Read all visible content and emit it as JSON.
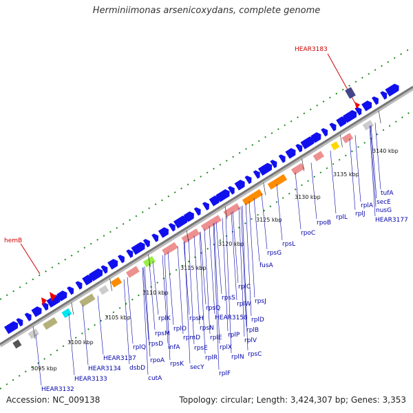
{
  "title": "Herminiimonas arsenicoxydans, complete genome",
  "footer": {
    "accession": "Accession: NC_009138",
    "summary": "Topology: circular; Length: 3,424,307 bp; Genes: 3,353"
  },
  "ticks": [
    "3095 kbp",
    "3100 kbp",
    "3105 kbp",
    "3110 kbp",
    "3115 kbp",
    "3120 kbp",
    "3125 kbp",
    "3130 kbp",
    "3135 kbp",
    "3140 kbp"
  ],
  "highlight_labels": [
    "HEAR3183",
    "hemB"
  ],
  "gene_labels": [
    "HEAR3132",
    "HEAR3133",
    "HEAR3134",
    "HEAR3137",
    "dsbD",
    "cutA",
    "rpoA",
    "rplQ",
    "rpsD",
    "rpsK",
    "rpsM",
    "infA",
    "secY",
    "rpmD",
    "rplO",
    "rpsE",
    "rplR",
    "rpsH",
    "rplF",
    "rplE",
    "rplX",
    "rplN",
    "rpsN",
    "rpsQ",
    "rplP",
    "rpsC",
    "rplV",
    "rpsS",
    "HEAR3158",
    "rplB",
    "rplD",
    "rplW",
    "rplC",
    "rpsJ",
    "fusA",
    "rpsG",
    "rpsL",
    "rpoC",
    "rpoB",
    "rplL",
    "rplJ",
    "rplA",
    "rplK",
    "nusG",
    "secE",
    "tufA",
    "HEAR3177"
  ]
}
